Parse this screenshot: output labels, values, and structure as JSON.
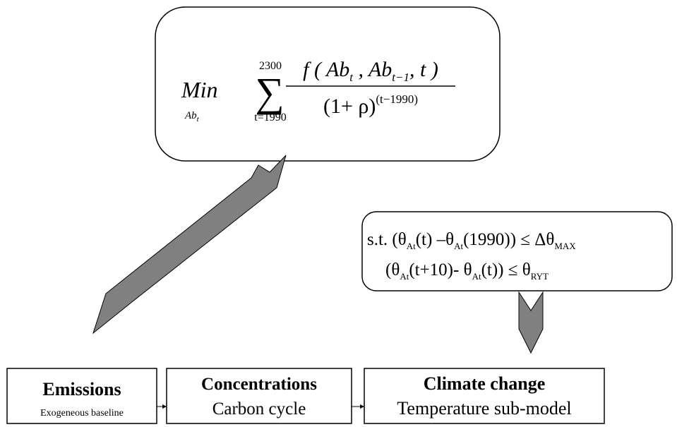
{
  "objective": {
    "operator": "Min",
    "operator_sub": [
      "Ab",
      "t"
    ],
    "sigma": "∑",
    "sum_upper": "2300",
    "sum_lower": "t=1990",
    "numerator": [
      "f ( Ab",
      "t",
      " , Ab",
      "t−1",
      ", t )"
    ],
    "denominator": [
      "(1+ ρ)",
      "(t−1990)"
    ]
  },
  "constraints": [
    [
      "s.t. (θ",
      "At",
      "(t) –θ",
      "At",
      "(1990)) ≤ Δθ",
      "MAX"
    ],
    [
      "(θ",
      "At",
      "(t+10)- θ",
      "At",
      "(t)) ≤ θ",
      "RYT"
    ]
  ],
  "boxes": [
    {
      "title": "Emissions",
      "subtitle": "Exogeneous baseline"
    },
    {
      "title": "Concentrations",
      "subtitle": "Carbon cycle"
    },
    {
      "title": "Climate change",
      "subtitle": "Temperature sub-model"
    }
  ]
}
